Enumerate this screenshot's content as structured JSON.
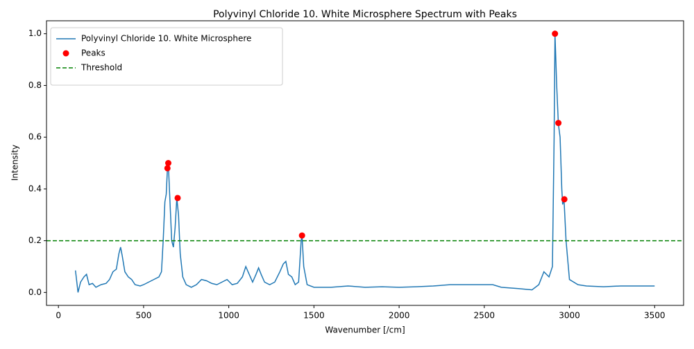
{
  "chart_data": {
    "type": "line",
    "title": "Polyvinyl Chloride 10. White Microsphere Spectrum with Peaks",
    "xlabel": "Wavenumber [/cm]",
    "ylabel": "Intensity",
    "xlim": [
      -70,
      3670
    ],
    "ylim": [
      -0.05,
      1.05
    ],
    "xticks": [
      0,
      500,
      1000,
      1500,
      2000,
      2500,
      3000,
      3500
    ],
    "yticks": [
      {
        "value": 0,
        "label": "0.0"
      },
      0.2,
      0.4,
      0.6,
      0.8,
      {
        "value": 1,
        "label": "1.0"
      }
    ],
    "legend": "upper left",
    "series": [
      {
        "name": "Polyvinyl Chloride 10. White Microsphere",
        "type": "line",
        "color": "#1f77b4",
        "x": [
          100,
          115,
          130,
          150,
          165,
          180,
          200,
          220,
          250,
          280,
          300,
          320,
          340,
          355,
          365,
          375,
          390,
          410,
          430,
          450,
          480,
          500,
          530,
          560,
          590,
          605,
          615,
          625,
          633,
          640,
          645,
          655,
          665,
          675,
          685,
          695,
          705,
          715,
          730,
          750,
          780,
          810,
          840,
          870,
          900,
          930,
          960,
          990,
          1020,
          1050,
          1080,
          1100,
          1120,
          1140,
          1160,
          1175,
          1190,
          1210,
          1240,
          1270,
          1300,
          1320,
          1335,
          1350,
          1370,
          1390,
          1410,
          1425,
          1430,
          1440,
          1460,
          1500,
          1600,
          1700,
          1800,
          1900,
          2000,
          2100,
          2200,
          2300,
          2400,
          2500,
          2550,
          2600,
          2700,
          2780,
          2820,
          2850,
          2880,
          2900,
          2910,
          2915,
          2925,
          2935,
          2945,
          2955,
          2960,
          2968,
          2980,
          3000,
          3050,
          3100,
          3200,
          3300,
          3400,
          3500
        ],
        "values": [
          0.085,
          0.0,
          0.04,
          0.06,
          0.07,
          0.03,
          0.035,
          0.02,
          0.03,
          0.035,
          0.05,
          0.08,
          0.09,
          0.15,
          0.175,
          0.14,
          0.08,
          0.06,
          0.05,
          0.03,
          0.025,
          0.03,
          0.04,
          0.05,
          0.06,
          0.08,
          0.2,
          0.35,
          0.38,
          0.48,
          0.5,
          0.35,
          0.2,
          0.175,
          0.25,
          0.365,
          0.3,
          0.15,
          0.06,
          0.03,
          0.02,
          0.03,
          0.05,
          0.045,
          0.035,
          0.03,
          0.04,
          0.05,
          0.03,
          0.035,
          0.06,
          0.1,
          0.07,
          0.04,
          0.07,
          0.095,
          0.07,
          0.04,
          0.03,
          0.04,
          0.08,
          0.11,
          0.12,
          0.07,
          0.06,
          0.03,
          0.04,
          0.2,
          0.22,
          0.1,
          0.03,
          0.02,
          0.02,
          0.025,
          0.02,
          0.022,
          0.02,
          0.022,
          0.025,
          0.03,
          0.03,
          0.03,
          0.03,
          0.02,
          0.015,
          0.01,
          0.03,
          0.08,
          0.06,
          0.1,
          0.6,
          1.0,
          0.8,
          0.65,
          0.6,
          0.4,
          0.34,
          0.36,
          0.2,
          0.05,
          0.03,
          0.025,
          0.022,
          0.025,
          0.025,
          0.025
        ]
      },
      {
        "name": "Peaks",
        "type": "scatter",
        "color": "#ff0000",
        "x": [
          640,
          645,
          700,
          1430,
          2915,
          2935,
          2970
        ],
        "values": [
          0.48,
          0.5,
          0.365,
          0.22,
          1.0,
          0.655,
          0.36
        ]
      },
      {
        "name": "Threshold",
        "type": "hline",
        "color": "#008000",
        "values": [
          0.2
        ]
      }
    ]
  }
}
